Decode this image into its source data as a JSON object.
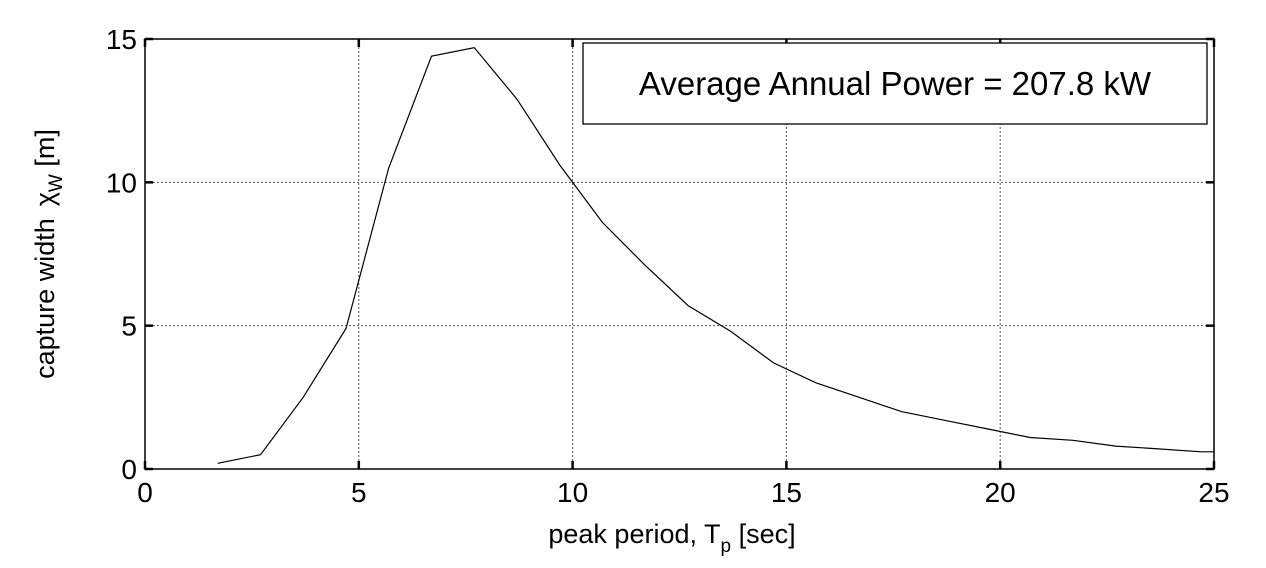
{
  "chart_data": {
    "type": "line",
    "xlabel": "peak period, T",
    "xlabel_sub": "p",
    "xlabel_suffix": " [sec]",
    "ylabel": "capture width",
    "ylabel_symbol": "χ",
    "ylabel_sub": "W",
    "ylabel_suffix": " [m]",
    "xlim": [
      0,
      25
    ],
    "ylim": [
      0,
      15
    ],
    "xticks": [
      0,
      5,
      10,
      15,
      20,
      25
    ],
    "yticks": [
      0,
      5,
      10,
      15
    ],
    "grid": true,
    "annotation": "Average Annual Power = 207.8 kW",
    "series": [
      {
        "color": "#000000",
        "x": [
          1.7,
          2.7,
          3.7,
          4.7,
          5.7,
          6.7,
          7.7,
          8.7,
          9.7,
          10.7,
          11.7,
          12.7,
          13.7,
          14.7,
          15.7,
          16.7,
          17.7,
          18.7,
          19.7,
          20.7,
          21.7,
          22.7,
          23.7,
          24.7,
          25
        ],
        "y": [
          0.2,
          0.5,
          2.5,
          4.9,
          10.5,
          14.4,
          14.7,
          12.9,
          10.6,
          8.6,
          7.1,
          5.7,
          4.8,
          3.7,
          3.0,
          2.5,
          2.0,
          1.7,
          1.4,
          1.1,
          1.0,
          0.8,
          0.7,
          0.6,
          0.6
        ]
      }
    ]
  }
}
